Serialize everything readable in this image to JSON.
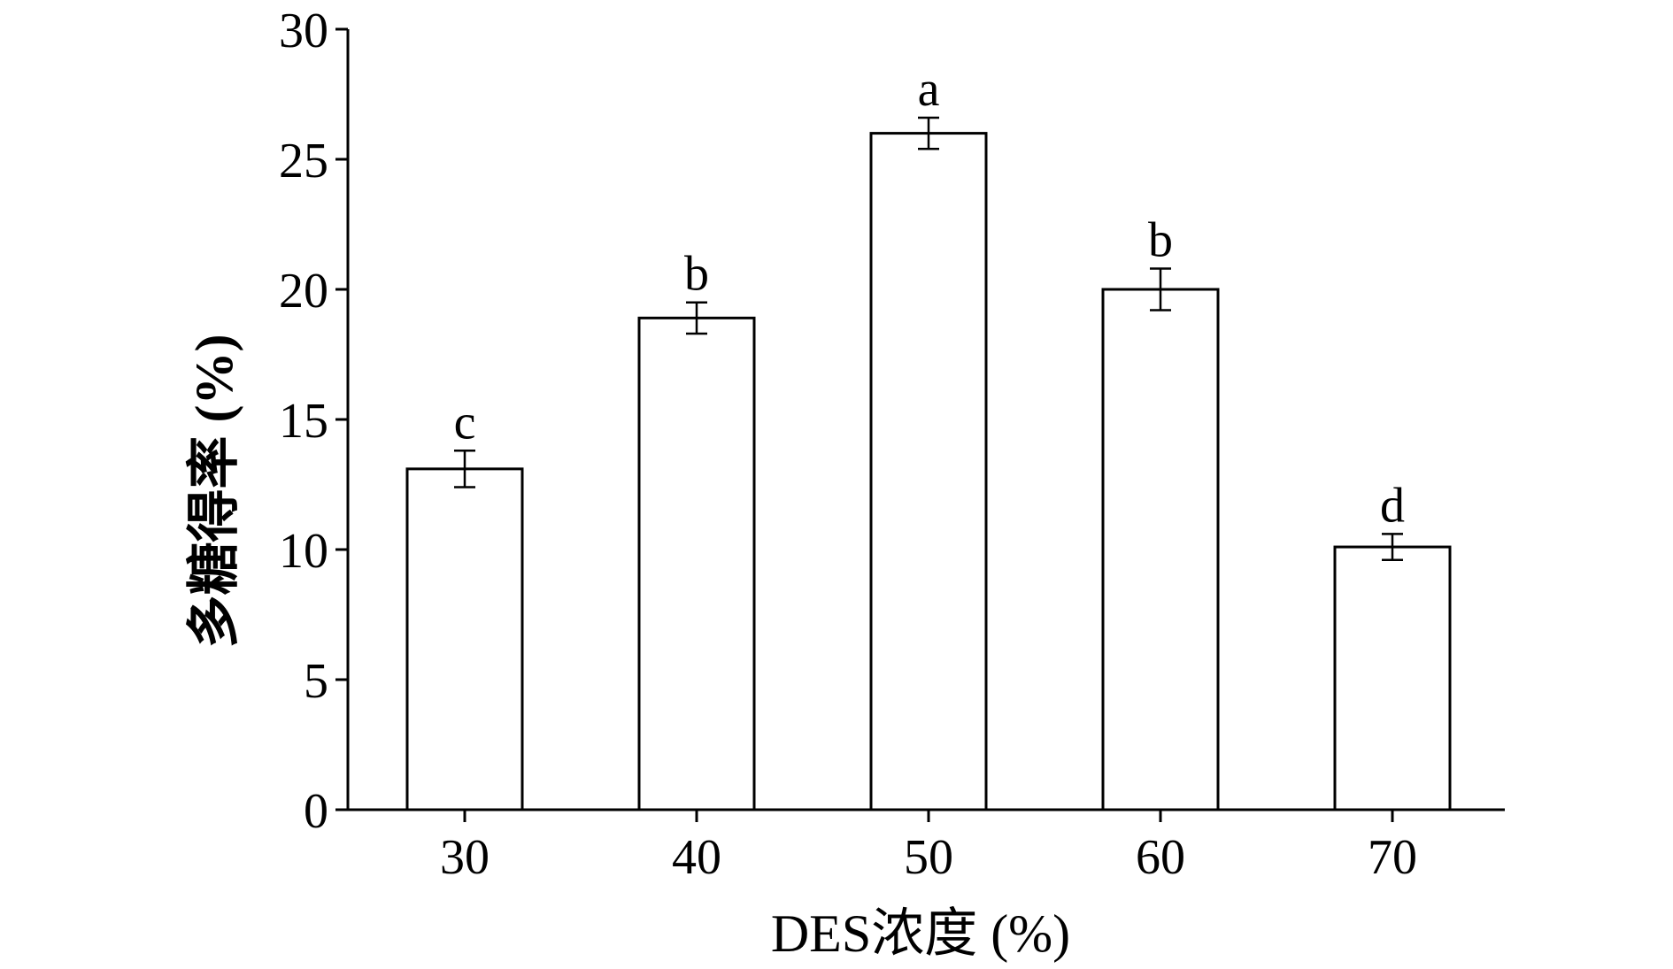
{
  "chart_data": {
    "type": "bar",
    "title": "",
    "xlabel": "DES浓度 (%)",
    "ylabel": "多糖得率 (%)",
    "categories": [
      "30",
      "40",
      "50",
      "60",
      "70"
    ],
    "values": [
      13.1,
      18.9,
      26.0,
      20.0,
      10.1
    ],
    "errors": [
      0.7,
      0.6,
      0.6,
      0.8,
      0.5
    ],
    "significance_labels": [
      "c",
      "b",
      "a",
      "b",
      "d"
    ],
    "ylim": [
      0,
      30
    ],
    "yticks": [
      0,
      5,
      10,
      15,
      20,
      25,
      30
    ],
    "grid": false,
    "legend": "none",
    "colors": {
      "bar_fill": "#ffffff",
      "bar_stroke": "#000000",
      "axis": "#000000"
    }
  }
}
